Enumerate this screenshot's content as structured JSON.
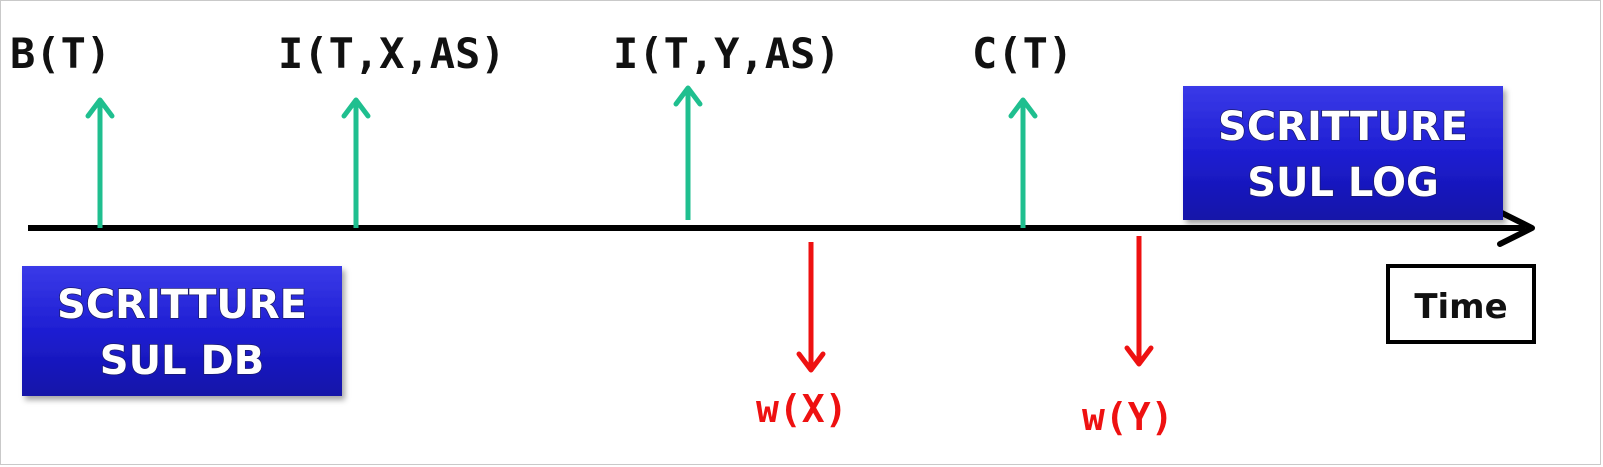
{
  "timeline": {
    "time_label": "Time"
  },
  "log_writes": [
    {
      "label": "B(T)"
    },
    {
      "label": "I(T,X,AS)"
    },
    {
      "label": "I(T,Y,AS)"
    },
    {
      "label": "C(T)"
    }
  ],
  "db_writes": [
    {
      "label": "w(X)"
    },
    {
      "label": "w(Y)"
    }
  ],
  "boxes": {
    "log": {
      "line1": "SCRITTURE",
      "line2": "SUL LOG"
    },
    "db": {
      "line1": "SCRITTURE",
      "line2": "SUL DB"
    }
  },
  "colors": {
    "log_arrow": "#1fbf8f",
    "db_arrow": "#ee1111",
    "box_fill": "#1f1fd6",
    "timeline": "#000000"
  }
}
